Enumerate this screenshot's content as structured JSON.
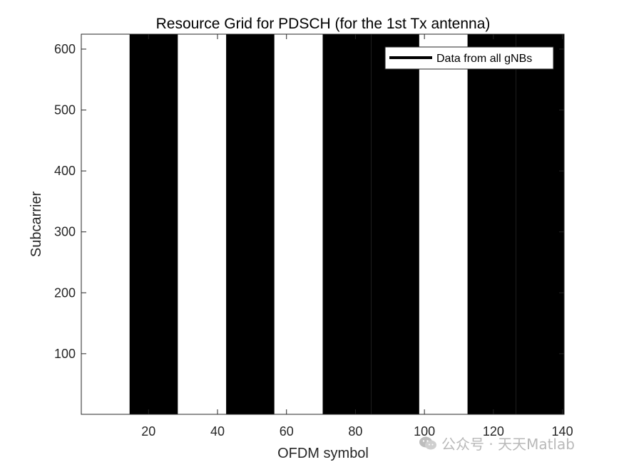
{
  "chart_data": {
    "type": "heatmap",
    "title": "Resource Grid for PDSCH (for the 1st Tx antenna)",
    "xlabel": "OFDM symbol",
    "ylabel": "Subcarrier",
    "xlim": [
      0.5,
      140.5
    ],
    "ylim": [
      0.5,
      624.5
    ],
    "xticks": [
      20,
      40,
      60,
      80,
      100,
      120,
      140
    ],
    "yticks": [
      100,
      200,
      300,
      400,
      500,
      600
    ],
    "grid": false,
    "colormap": [
      "#ffffff",
      "#000000"
    ],
    "bands": [
      {
        "x_start": 1,
        "x_end": 14,
        "value": 0
      },
      {
        "x_start": 15,
        "x_end": 28,
        "value": 1
      },
      {
        "x_start": 29,
        "x_end": 42,
        "value": 0
      },
      {
        "x_start": 43,
        "x_end": 56,
        "value": 1
      },
      {
        "x_start": 57,
        "x_end": 70,
        "value": 0
      },
      {
        "x_start": 71,
        "x_end": 84,
        "value": 1
      },
      {
        "x_start": 85,
        "x_end": 98,
        "value": 1
      },
      {
        "x_start": 99,
        "x_end": 112,
        "value": 0
      },
      {
        "x_start": 113,
        "x_end": 126,
        "value": 1
      },
      {
        "x_start": 127,
        "x_end": 140,
        "value": 1
      }
    ],
    "legend": {
      "position": "top-right",
      "entries": [
        {
          "label": "Data from all gNBs",
          "color": "#000000"
        }
      ]
    }
  },
  "watermark": {
    "text": "公众号 · 天天Matlab"
  }
}
